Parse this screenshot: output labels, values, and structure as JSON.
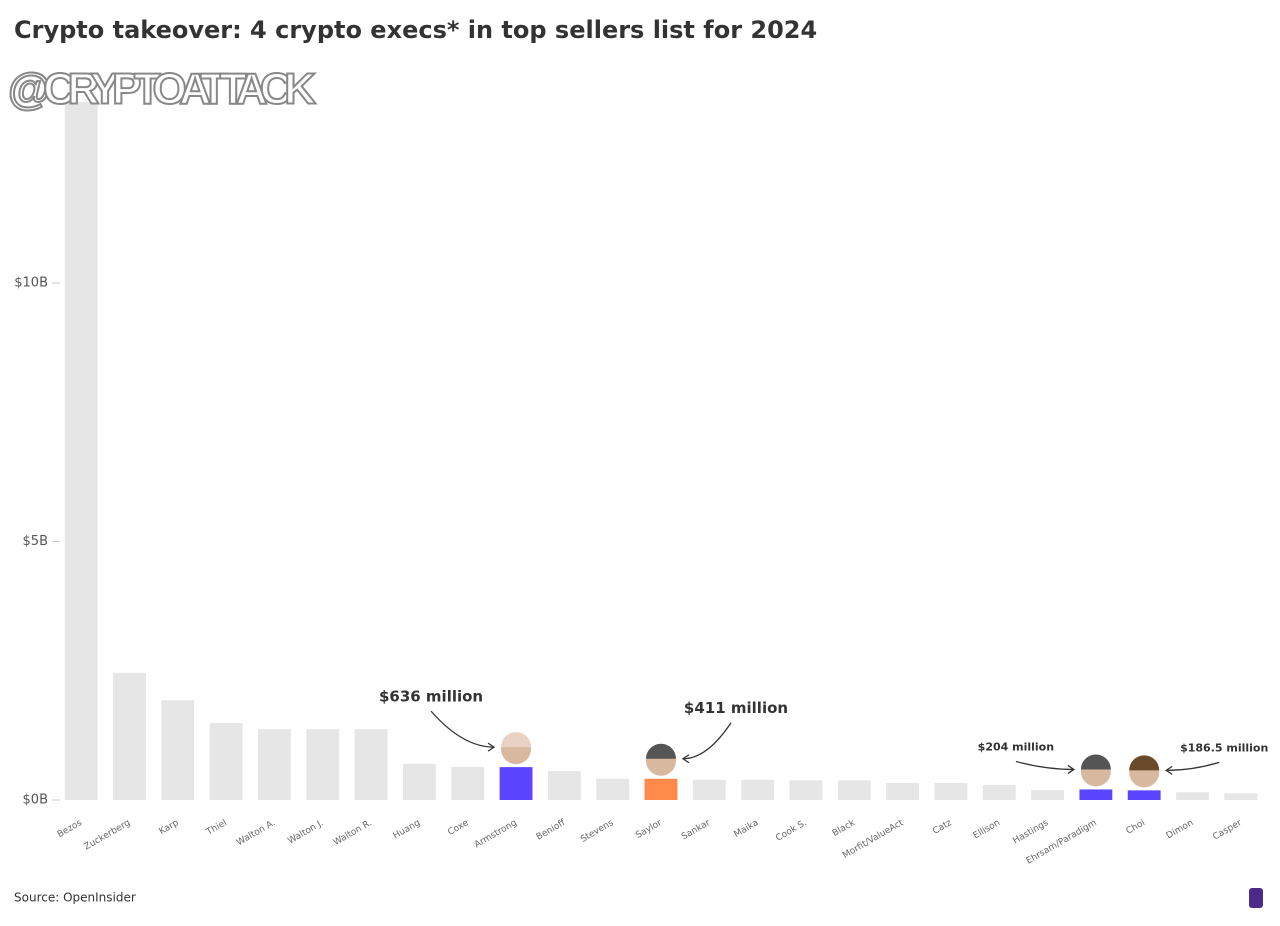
{
  "chart_data": {
    "type": "bar",
    "title": "Crypto takeover: 4 crypto execs* in top sellers list for 2024",
    "watermark": "@CRYPTOATTACK",
    "source": "Source: OpenInsider",
    "categories": [
      "Bezos",
      "Zuckerberg",
      "Karp",
      "Thiel",
      "Walton A.",
      "Walton J.",
      "Walton R.",
      "Huang",
      "Coxe",
      "Armstrong",
      "Benioff",
      "Stevens",
      "Saylor",
      "Sankar",
      "Maika",
      "Cook S.",
      "Black",
      "Morfit/ValueAct",
      "Catz",
      "Ellison",
      "Hastings",
      "Ehrsam/Paradigm",
      "Choi",
      "Dimon",
      "Casper"
    ],
    "values": [
      13.5,
      2.46,
      1.93,
      1.49,
      1.37,
      1.37,
      1.37,
      0.7,
      0.64,
      0.636,
      0.56,
      0.41,
      0.411,
      0.39,
      0.39,
      0.38,
      0.38,
      0.33,
      0.33,
      0.29,
      0.19,
      0.204,
      0.1865,
      0.15,
      0.13
    ],
    "value_labels": [
      null,
      null,
      null,
      null,
      null,
      null,
      null,
      null,
      null,
      "$636 million",
      null,
      null,
      "$411 million",
      null,
      null,
      null,
      null,
      null,
      null,
      null,
      null,
      "$204 million",
      "$186.5 million",
      null,
      null
    ],
    "colors": [
      "#e6e6e6",
      "#e6e6e6",
      "#e6e6e6",
      "#e6e6e6",
      "#e6e6e6",
      "#e6e6e6",
      "#e6e6e6",
      "#e6e6e6",
      "#e6e6e6",
      "#5b45ff",
      "#e6e6e6",
      "#e6e6e6",
      "#ff8a4a",
      "#e6e6e6",
      "#e6e6e6",
      "#e6e6e6",
      "#e6e6e6",
      "#e6e6e6",
      "#e6e6e6",
      "#e6e6e6",
      "#e6e6e6",
      "#5b45ff",
      "#5b45ff",
      "#e6e6e6",
      "#e6e6e6"
    ],
    "ylim": [
      0,
      13.5
    ],
    "yticks": [
      {
        "value": 0,
        "label": "$0B"
      },
      {
        "value": 5,
        "label": "$5B"
      },
      {
        "value": 10,
        "label": "$10B"
      }
    ]
  }
}
